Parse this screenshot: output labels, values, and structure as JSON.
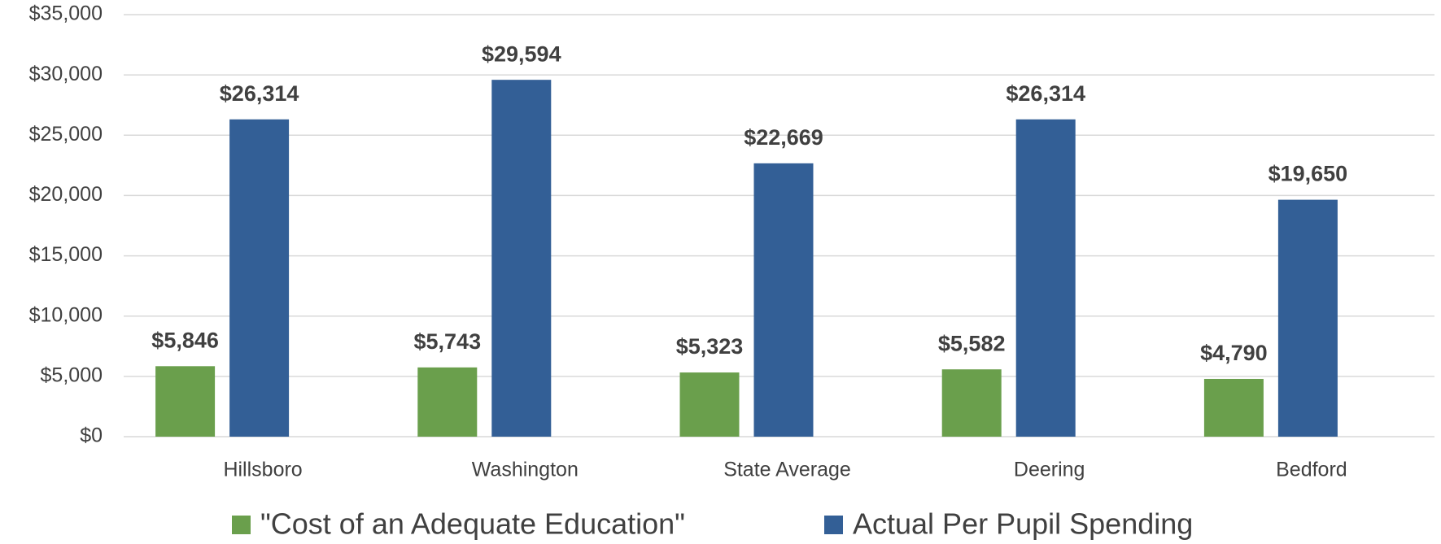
{
  "chart_data": {
    "type": "bar",
    "categories": [
      "Hillsboro",
      "Washington",
      "State Average",
      "Deering",
      "Bedford"
    ],
    "series": [
      {
        "name": "\"Cost of an Adequate Education\"",
        "color": "#6a9f4c",
        "values": [
          5846,
          5743,
          5323,
          5582,
          4790
        ],
        "value_labels": [
          "$5,846",
          "$5,743",
          "$5,323",
          "$5,582",
          "$4,790"
        ]
      },
      {
        "name": "Actual Per Pupil Spending",
        "color": "#335f96",
        "values": [
          26314,
          29594,
          22669,
          26314,
          19650
        ],
        "value_labels": [
          "$26,314",
          "$29,594",
          "$22,669",
          "$26,314",
          "$19,650"
        ]
      }
    ],
    "ylim": [
      0,
      35000
    ],
    "yticks": [
      {
        "value": 0,
        "label": "$0"
      },
      {
        "value": 5000,
        "label": "$5,000"
      },
      {
        "value": 10000,
        "label": "$10,000"
      },
      {
        "value": 15000,
        "label": "$15,000"
      },
      {
        "value": 20000,
        "label": "$20,000"
      },
      {
        "value": 25000,
        "label": "$25,000"
      },
      {
        "value": 30000,
        "label": "$30,000"
      },
      {
        "value": 35000,
        "label": "$35,000"
      }
    ],
    "grid": true,
    "legend": "bottom"
  }
}
